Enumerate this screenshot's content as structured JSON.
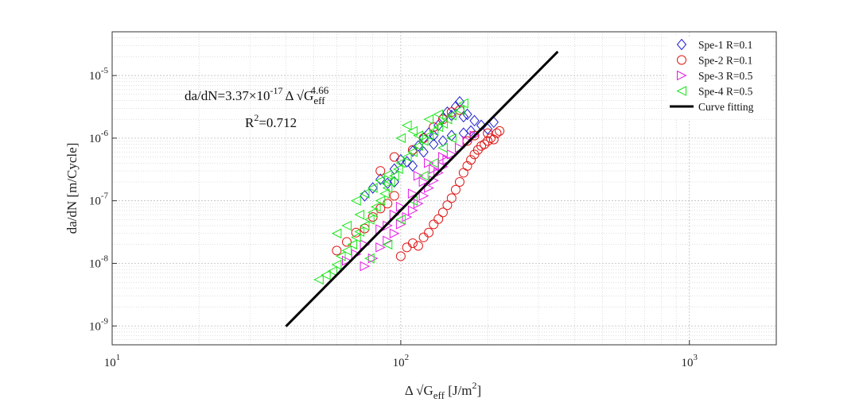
{
  "chart_data": {
    "type": "scatter",
    "xlabel": "Δ √G_eff [J/m²]",
    "xlabel_parts": {
      "base": "Δ √G",
      "sub": "eff",
      "unit": " [J/m",
      "unit_sup": "2",
      "unit_end": "]"
    },
    "ylabel": "da/dN [m/Cycle]",
    "x_scale": "log",
    "y_scale": "log",
    "xlim": [
      10,
      2000
    ],
    "ylim": [
      5e-10,
      5e-05
    ],
    "grid": true,
    "legend_position": "top-right",
    "x_ticks": [
      {
        "value": 10,
        "base": "10",
        "exp": "1"
      },
      {
        "value": 100,
        "base": "10",
        "exp": "2"
      },
      {
        "value": 1000,
        "base": "10",
        "exp": "3"
      }
    ],
    "y_ticks": [
      {
        "value": 1e-09,
        "base": "10",
        "exp": "-9"
      },
      {
        "value": 1e-08,
        "base": "10",
        "exp": "-8"
      },
      {
        "value": 1e-07,
        "base": "10",
        "exp": "-7"
      },
      {
        "value": 1e-06,
        "base": "10",
        "exp": "-6"
      },
      {
        "value": 1e-05,
        "base": "10",
        "exp": "-5"
      }
    ],
    "annotation": {
      "lhs": "da/dN=3.37×10",
      "coef_exp": "-17",
      "mid": "Δ √G",
      "sub": "eff",
      "power": "4.66",
      "r2_base": "R",
      "r2_exp": "2",
      "r2_value": "=0.712"
    },
    "fit": {
      "name": "Curve fitting",
      "coefficient": 3.37e-17,
      "exponent": 4.66,
      "x_range": [
        40,
        350
      ],
      "r2": 0.712,
      "color": "#000000"
    },
    "series": [
      {
        "name": "Spe-1 R=0.1",
        "marker": "diamond",
        "color": "#1f1fd1",
        "points": [
          [
            75,
            1.2e-07
          ],
          [
            80,
            1.6e-07
          ],
          [
            85,
            2.2e-07
          ],
          [
            90,
            1.9e-07
          ],
          [
            95,
            3.2e-07
          ],
          [
            100,
            4.5e-07
          ],
          [
            105,
            4.2e-07
          ],
          [
            110,
            6.2e-07
          ],
          [
            115,
            7.5e-07
          ],
          [
            120,
            1e-06
          ],
          [
            125,
            1.2e-06
          ],
          [
            130,
            1.1e-06
          ],
          [
            135,
            1.6e-06
          ],
          [
            140,
            2.1e-06
          ],
          [
            145,
            2.6e-06
          ],
          [
            150,
            2.3e-06
          ],
          [
            155,
            3.2e-06
          ],
          [
            160,
            3.8e-06
          ],
          [
            165,
            2.2e-06
          ],
          [
            170,
            2.4e-06
          ],
          [
            180,
            1.9e-06
          ],
          [
            190,
            1.6e-06
          ],
          [
            200,
            1.4e-06
          ],
          [
            210,
            1.8e-06
          ],
          [
            120,
            6e-07
          ],
          [
            130,
            8e-07
          ],
          [
            140,
            9e-07
          ],
          [
            150,
            1.1e-06
          ],
          [
            95,
            2e-07
          ],
          [
            110,
            3.6e-07
          ],
          [
            165,
            1.2e-06
          ],
          [
            175,
            1.3e-06
          ]
        ]
      },
      {
        "name": "Spe-2 R=0.1",
        "marker": "circle",
        "color": "#e01919",
        "points": [
          [
            60,
            1.6e-08
          ],
          [
            65,
            2.2e-08
          ],
          [
            70,
            3.1e-08
          ],
          [
            75,
            3.6e-08
          ],
          [
            80,
            5.5e-08
          ],
          [
            85,
            7.5e-08
          ],
          [
            90,
            9e-08
          ],
          [
            95,
            1.2e-07
          ],
          [
            100,
            1.3e-08
          ],
          [
            105,
            1.8e-08
          ],
          [
            110,
            2.1e-08
          ],
          [
            115,
            1.9e-08
          ],
          [
            120,
            2.6e-08
          ],
          [
            125,
            3.1e-08
          ],
          [
            130,
            4.2e-08
          ],
          [
            135,
            5.1e-08
          ],
          [
            140,
            6.5e-08
          ],
          [
            145,
            8.5e-08
          ],
          [
            150,
            1.1e-07
          ],
          [
            155,
            1.5e-07
          ],
          [
            160,
            2e-07
          ],
          [
            165,
            2.8e-07
          ],
          [
            170,
            3.6e-07
          ],
          [
            175,
            4.5e-07
          ],
          [
            180,
            5.5e-07
          ],
          [
            185,
            6.5e-07
          ],
          [
            190,
            7.5e-07
          ],
          [
            195,
            8e-07
          ],
          [
            200,
            9e-07
          ],
          [
            205,
            1e-06
          ],
          [
            210,
            9.5e-07
          ],
          [
            215,
            1.2e-06
          ],
          [
            220,
            1.3e-06
          ],
          [
            110,
            6.5e-07
          ],
          [
            120,
            1e-06
          ],
          [
            130,
            1.5e-06
          ],
          [
            140,
            2e-06
          ],
          [
            150,
            2.6e-06
          ],
          [
            160,
            2.8e-06
          ],
          [
            95,
            5e-07
          ],
          [
            85,
            3e-07
          ],
          [
            180,
            1.1e-06
          ],
          [
            170,
            9e-07
          ],
          [
            200,
            1.2e-06
          ]
        ]
      },
      {
        "name": "Spe-3 R=0.5",
        "marker": "triangle-right",
        "color": "#e619e6",
        "points": [
          [
            65,
            1.1e-08
          ],
          [
            70,
            1.4e-08
          ],
          [
            75,
            9e-09
          ],
          [
            80,
            1.2e-08
          ],
          [
            85,
            1.8e-08
          ],
          [
            90,
            2.3e-08
          ],
          [
            95,
            3e-08
          ],
          [
            100,
            4.2e-08
          ],
          [
            105,
            5.5e-08
          ],
          [
            110,
            7e-08
          ],
          [
            115,
            9e-08
          ],
          [
            120,
            1.2e-07
          ],
          [
            125,
            1.6e-07
          ],
          [
            130,
            2.1e-07
          ],
          [
            135,
            2.8e-07
          ],
          [
            140,
            3.5e-07
          ],
          [
            145,
            4.5e-07
          ],
          [
            150,
            5.5e-07
          ],
          [
            160,
            7e-07
          ],
          [
            170,
            9e-07
          ],
          [
            180,
            1.1e-06
          ],
          [
            95,
            6e-08
          ],
          [
            90,
            4e-08
          ],
          [
            100,
            8e-08
          ],
          [
            110,
            1.3e-07
          ],
          [
            120,
            2e-07
          ],
          [
            130,
            3.2e-07
          ],
          [
            140,
            5e-07
          ],
          [
            85,
            3.5e-08
          ],
          [
            75,
            2e-08
          ],
          [
            115,
            2.5e-07
          ],
          [
            125,
            4e-07
          ]
        ]
      },
      {
        "name": "Spe-4 R=0.5",
        "marker": "triangle-left",
        "color": "#19e619",
        "points": [
          [
            52,
            5.5e-09
          ],
          [
            55,
            6.5e-09
          ],
          [
            58,
            7.5e-09
          ],
          [
            60,
            9.5e-09
          ],
          [
            62,
            1.3e-08
          ],
          [
            65,
            1.6e-08
          ],
          [
            68,
            2e-08
          ],
          [
            70,
            2.6e-08
          ],
          [
            72,
            3.2e-08
          ],
          [
            75,
            4e-08
          ],
          [
            78,
            5e-08
          ],
          [
            80,
            6.5e-08
          ],
          [
            82,
            8e-08
          ],
          [
            85,
            1e-07
          ],
          [
            88,
            1.3e-07
          ],
          [
            90,
            1.6e-07
          ],
          [
            92,
            2e-07
          ],
          [
            95,
            2.5e-07
          ],
          [
            98,
            3.2e-07
          ],
          [
            100,
            4e-07
          ],
          [
            105,
            5e-07
          ],
          [
            110,
            6e-07
          ],
          [
            115,
            7.5e-07
          ],
          [
            120,
            9e-07
          ],
          [
            125,
            1.1e-06
          ],
          [
            130,
            1.3e-06
          ],
          [
            135,
            1.5e-06
          ],
          [
            140,
            1.7e-06
          ],
          [
            145,
            2e-06
          ],
          [
            150,
            2.3e-06
          ],
          [
            160,
            2.8e-06
          ],
          [
            165,
            3.6e-06
          ],
          [
            70,
            1e-07
          ],
          [
            75,
            1.3e-07
          ],
          [
            80,
            1.6e-07
          ],
          [
            85,
            2.1e-07
          ],
          [
            90,
            2.6e-07
          ],
          [
            100,
            1e-06
          ],
          [
            110,
            1.3e-06
          ],
          [
            115,
            1.1e-06
          ],
          [
            105,
            1.6e-06
          ],
          [
            90,
            2e-08
          ],
          [
            100,
            5e-08
          ],
          [
            110,
            1e-07
          ],
          [
            120,
            2.5e-07
          ],
          [
            130,
            4e-07
          ],
          [
            140,
            7e-07
          ],
          [
            150,
            1e-06
          ],
          [
            78,
            1.2e-08
          ],
          [
            65,
            4e-08
          ],
          [
            60,
            3e-08
          ],
          [
            72,
            6e-08
          ],
          [
            125,
            2e-06
          ],
          [
            135,
            2.4e-06
          ]
        ]
      }
    ]
  }
}
